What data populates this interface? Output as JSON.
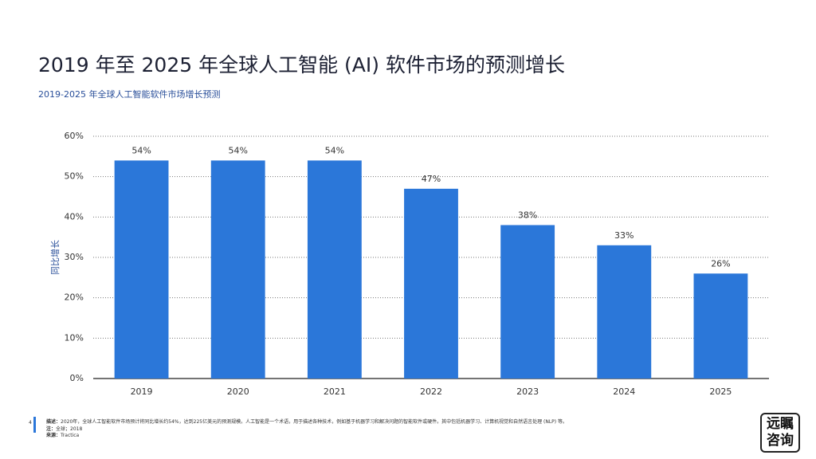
{
  "header": {
    "title": "2019 年至 2025 年全球人工智能 (AI) 软件市场的预测增长",
    "subtitle": "2019-2025 年全球人工智能软件市场增长预测"
  },
  "chart_data": {
    "type": "bar",
    "y_label": "同比增长",
    "categories": [
      "2019",
      "2020",
      "2021",
      "2022",
      "2023",
      "2024",
      "2025"
    ],
    "values": [
      54,
      54,
      54,
      47,
      38,
      33,
      26
    ],
    "value_labels": [
      "54%",
      "54%",
      "54%",
      "47%",
      "38%",
      "33%",
      "26%"
    ],
    "color": "#2b77d9",
    "ylim": [
      0,
      60
    ],
    "yticks": [
      {
        "value": 0,
        "label": "0%"
      },
      {
        "value": 10,
        "label": "10%"
      },
      {
        "value": 20,
        "label": "20%"
      },
      {
        "value": 30,
        "label": "30%"
      },
      {
        "value": 40,
        "label": "40%"
      },
      {
        "value": 50,
        "label": "50%"
      },
      {
        "value": 60,
        "label": "60%"
      }
    ],
    "grid": true
  },
  "footer": {
    "page": "4",
    "notes": [
      {
        "label": "描述：",
        "text": "2020年，全球人工智能软件市场预计将同比增长约54%，达到225亿美元的预测规模。人工智能是一个术语，用于描述各种技术，例如基于机器学习和解决问题的智能软件或硬件。其中包括机器学习、计算机视觉和自然语言处理 (NLP) 等。"
      },
      {
        "label": "注：",
        "text": "全球；2018"
      },
      {
        "label": "来源：",
        "text": "Tractica"
      }
    ]
  },
  "logo": {
    "line1": "远瞩",
    "line2": "咨询"
  }
}
